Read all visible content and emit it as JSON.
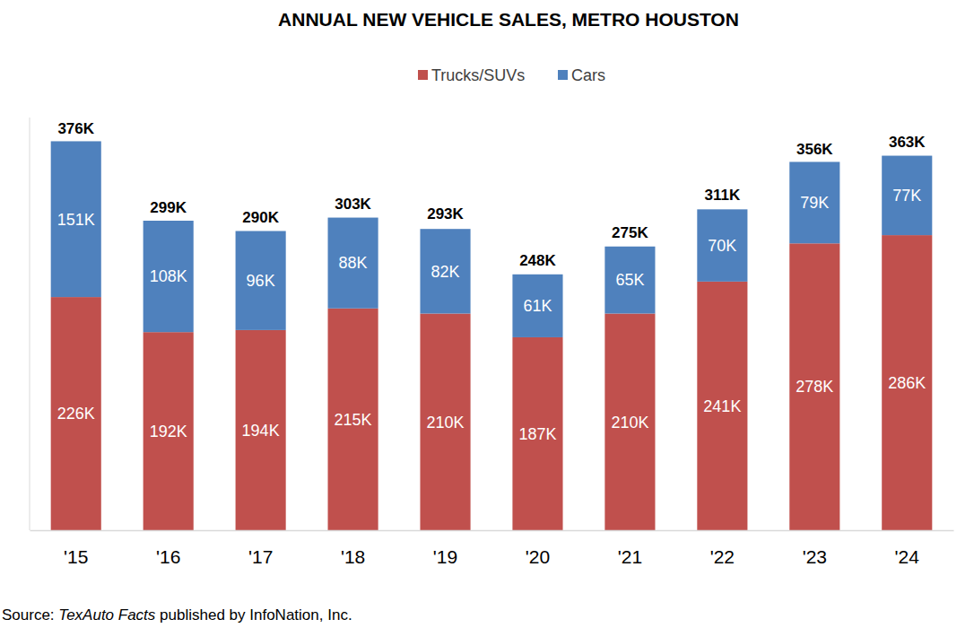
{
  "chart_data": {
    "type": "bar",
    "title": "ANNUAL NEW VEHICLE SALES, METRO HOUSTON",
    "categories": [
      "'15",
      "'16",
      "'17",
      "'18",
      "'19",
      "'20",
      "'21",
      "'22",
      "'23",
      "'24"
    ],
    "stacked": true,
    "data_labels": true,
    "tick_labels": "x",
    "grid": false,
    "legend": "top",
    "ylim": [
      0,
      400
    ],
    "series": [
      {
        "name": "Trucks/SUVs",
        "color": "#c0504d",
        "values": [
          226,
          192,
          194,
          215,
          210,
          187,
          210,
          241,
          278,
          286
        ],
        "value_labels": [
          "226K",
          "192K",
          "194K",
          "215K",
          "210K",
          "187K",
          "210K",
          "241K",
          "278K",
          "286K"
        ]
      },
      {
        "name": "Cars",
        "color": "#4f81bd",
        "values": [
          151,
          108,
          96,
          88,
          82,
          61,
          65,
          70,
          79,
          77
        ],
        "value_labels": [
          "151K",
          "108K",
          "96K",
          "88K",
          "82K",
          "61K",
          "65K",
          "70K",
          "79K",
          "77K"
        ]
      }
    ],
    "totals": {
      "values": [
        376,
        299,
        290,
        303,
        293,
        248,
        275,
        311,
        356,
        363
      ],
      "value_labels": [
        "376K",
        "299K",
        "290K",
        "303K",
        "293K",
        "248K",
        "275K",
        "311K",
        "356K",
        "363K"
      ]
    },
    "source": [
      "Source: ",
      "TexAuto Facts",
      " published by InfoNation, Inc."
    ]
  }
}
